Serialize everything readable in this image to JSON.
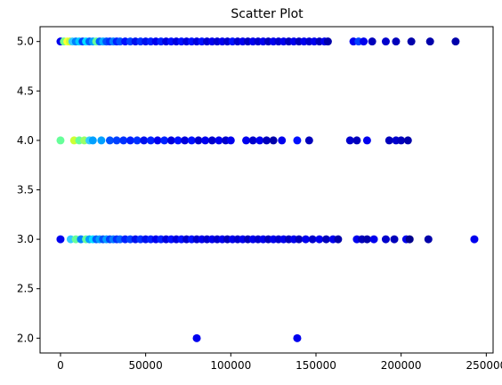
{
  "chart_data": {
    "type": "scatter",
    "title": "Scatter Plot",
    "xlabel": "",
    "ylabel": "",
    "xlim": [
      -12000,
      254000
    ],
    "ylim": [
      1.85,
      5.15
    ],
    "xticks": [
      0,
      50000,
      100000,
      150000,
      200000,
      250000
    ],
    "xtick_labels": [
      "0",
      "50000",
      "100000",
      "150000",
      "200000",
      "250000"
    ],
    "yticks": [
      2.0,
      2.5,
      3.0,
      3.5,
      4.0,
      4.5,
      5.0
    ],
    "ytick_labels": [
      "2.0",
      "2.5",
      "3.0",
      "3.5",
      "4.0",
      "4.5",
      "5.0"
    ],
    "grid": false,
    "colormap": "jet",
    "series": [
      {
        "points": [
          {
            "x": 0,
            "y": 5,
            "color": "#0000ee"
          },
          {
            "x": 2000,
            "y": 5,
            "color": "#6dff8a"
          },
          {
            "x": 4000,
            "y": 5,
            "color": "#ffff33"
          },
          {
            "x": 5500,
            "y": 5,
            "color": "#ccff33"
          },
          {
            "x": 7000,
            "y": 5,
            "color": "#33ccff"
          },
          {
            "x": 9000,
            "y": 5,
            "color": "#0080ff"
          },
          {
            "x": 11000,
            "y": 5,
            "color": "#00ccff"
          },
          {
            "x": 13000,
            "y": 5,
            "color": "#0040ff"
          },
          {
            "x": 15000,
            "y": 5,
            "color": "#00e0ff"
          },
          {
            "x": 17000,
            "y": 5,
            "color": "#0060ff"
          },
          {
            "x": 19000,
            "y": 5,
            "color": "#00a0ff"
          },
          {
            "x": 21000,
            "y": 5,
            "color": "#66ff99"
          },
          {
            "x": 23000,
            "y": 5,
            "color": "#0060ff"
          },
          {
            "x": 25000,
            "y": 5,
            "color": "#00b0ff"
          },
          {
            "x": 27000,
            "y": 5,
            "color": "#0050ff"
          },
          {
            "x": 29000,
            "y": 5,
            "color": "#0030ff"
          },
          {
            "x": 31000,
            "y": 5,
            "color": "#0080ff"
          },
          {
            "x": 33000,
            "y": 5,
            "color": "#0020ff"
          },
          {
            "x": 35000,
            "y": 5,
            "color": "#0050ff"
          },
          {
            "x": 38000,
            "y": 5,
            "color": "#0010ff"
          },
          {
            "x": 41000,
            "y": 5,
            "color": "#0040ff"
          },
          {
            "x": 44000,
            "y": 5,
            "color": "#0010ee"
          },
          {
            "x": 47000,
            "y": 5,
            "color": "#0030ff"
          },
          {
            "x": 50000,
            "y": 5,
            "color": "#0010ee"
          },
          {
            "x": 53000,
            "y": 5,
            "color": "#0020ff"
          },
          {
            "x": 56000,
            "y": 5,
            "color": "#0000ee"
          },
          {
            "x": 59000,
            "y": 5,
            "color": "#0020ff"
          },
          {
            "x": 62000,
            "y": 5,
            "color": "#0000e0"
          },
          {
            "x": 65000,
            "y": 5,
            "color": "#0010ff"
          },
          {
            "x": 68000,
            "y": 5,
            "color": "#0000e0"
          },
          {
            "x": 71000,
            "y": 5,
            "color": "#0010ff"
          },
          {
            "x": 74000,
            "y": 5,
            "color": "#0000dd"
          },
          {
            "x": 77000,
            "y": 5,
            "color": "#0010ff"
          },
          {
            "x": 80000,
            "y": 5,
            "color": "#0000dd"
          },
          {
            "x": 83000,
            "y": 5,
            "color": "#0010ff"
          },
          {
            "x": 86000,
            "y": 5,
            "color": "#0000d0"
          },
          {
            "x": 89000,
            "y": 5,
            "color": "#0000ee"
          },
          {
            "x": 92000,
            "y": 5,
            "color": "#0000d0"
          },
          {
            "x": 95000,
            "y": 5,
            "color": "#0000ee"
          },
          {
            "x": 98000,
            "y": 5,
            "color": "#0000cc"
          },
          {
            "x": 101000,
            "y": 5,
            "color": "#0010ff"
          },
          {
            "x": 104000,
            "y": 5,
            "color": "#0000cc"
          },
          {
            "x": 107000,
            "y": 5,
            "color": "#0000ee"
          },
          {
            "x": 110000,
            "y": 5,
            "color": "#0000c0"
          },
          {
            "x": 113000,
            "y": 5,
            "color": "#0000ee"
          },
          {
            "x": 116000,
            "y": 5,
            "color": "#0000cc"
          },
          {
            "x": 119000,
            "y": 5,
            "color": "#0000ee"
          },
          {
            "x": 122000,
            "y": 5,
            "color": "#0000bb"
          },
          {
            "x": 125000,
            "y": 5,
            "color": "#0000ee"
          },
          {
            "x": 128000,
            "y": 5,
            "color": "#0000cc"
          },
          {
            "x": 131000,
            "y": 5,
            "color": "#0000ee"
          },
          {
            "x": 134000,
            "y": 5,
            "color": "#0000bb"
          },
          {
            "x": 137000,
            "y": 5,
            "color": "#0000ee"
          },
          {
            "x": 140000,
            "y": 5,
            "color": "#0000bb"
          },
          {
            "x": 143000,
            "y": 5,
            "color": "#0000ee"
          },
          {
            "x": 146000,
            "y": 5,
            "color": "#0000cc"
          },
          {
            "x": 149000,
            "y": 5,
            "color": "#0000ee"
          },
          {
            "x": 152000,
            "y": 5,
            "color": "#0000bb"
          },
          {
            "x": 155000,
            "y": 5,
            "color": "#0000ee"
          },
          {
            "x": 157000,
            "y": 5,
            "color": "#0000aa"
          },
          {
            "x": 172000,
            "y": 5,
            "color": "#0000ee"
          },
          {
            "x": 175000,
            "y": 5,
            "color": "#0040ff"
          },
          {
            "x": 178000,
            "y": 5,
            "color": "#0000ee"
          },
          {
            "x": 183000,
            "y": 5,
            "color": "#0000bb"
          },
          {
            "x": 191000,
            "y": 5,
            "color": "#0000cc"
          },
          {
            "x": 197000,
            "y": 5,
            "color": "#0000bb"
          },
          {
            "x": 206000,
            "y": 5,
            "color": "#0000aa"
          },
          {
            "x": 217000,
            "y": 5,
            "color": "#0000aa"
          },
          {
            "x": 232000,
            "y": 5,
            "color": "#0000aa"
          },
          {
            "x": 0,
            "y": 4,
            "color": "#66ff99"
          },
          {
            "x": 8000,
            "y": 4,
            "color": "#ccff33"
          },
          {
            "x": 11000,
            "y": 4,
            "color": "#66ff99"
          },
          {
            "x": 14000,
            "y": 4,
            "color": "#99ff66"
          },
          {
            "x": 17000,
            "y": 4,
            "color": "#33ccff"
          },
          {
            "x": 19000,
            "y": 4,
            "color": "#00a0ff"
          },
          {
            "x": 24000,
            "y": 4,
            "color": "#00a0ff"
          },
          {
            "x": 29000,
            "y": 4,
            "color": "#0050ff"
          },
          {
            "x": 33000,
            "y": 4,
            "color": "#0040ff"
          },
          {
            "x": 37000,
            "y": 4,
            "color": "#0030ff"
          },
          {
            "x": 41000,
            "y": 4,
            "color": "#0020ff"
          },
          {
            "x": 45000,
            "y": 4,
            "color": "#0030ff"
          },
          {
            "x": 49000,
            "y": 4,
            "color": "#0010ee"
          },
          {
            "x": 53000,
            "y": 4,
            "color": "#0020ff"
          },
          {
            "x": 57000,
            "y": 4,
            "color": "#0000ee"
          },
          {
            "x": 61000,
            "y": 4,
            "color": "#0020ff"
          },
          {
            "x": 65000,
            "y": 4,
            "color": "#0000dd"
          },
          {
            "x": 69000,
            "y": 4,
            "color": "#0010ff"
          },
          {
            "x": 73000,
            "y": 4,
            "color": "#0000dd"
          },
          {
            "x": 77000,
            "y": 4,
            "color": "#0010ff"
          },
          {
            "x": 81000,
            "y": 4,
            "color": "#0000cc"
          },
          {
            "x": 85000,
            "y": 4,
            "color": "#0000ee"
          },
          {
            "x": 89000,
            "y": 4,
            "color": "#0000cc"
          },
          {
            "x": 93000,
            "y": 4,
            "color": "#0000ee"
          },
          {
            "x": 97000,
            "y": 4,
            "color": "#0000cc"
          },
          {
            "x": 100000,
            "y": 4,
            "color": "#0000ee"
          },
          {
            "x": 109000,
            "y": 4,
            "color": "#0000ee"
          },
          {
            "x": 113000,
            "y": 4,
            "color": "#0000cc"
          },
          {
            "x": 117000,
            "y": 4,
            "color": "#0000ee"
          },
          {
            "x": 121000,
            "y": 4,
            "color": "#0000bb"
          },
          {
            "x": 125000,
            "y": 4,
            "color": "#0000aa"
          },
          {
            "x": 130000,
            "y": 4,
            "color": "#0000ee"
          },
          {
            "x": 139000,
            "y": 4,
            "color": "#0010ff"
          },
          {
            "x": 146000,
            "y": 4,
            "color": "#0000bb"
          },
          {
            "x": 170000,
            "y": 4,
            "color": "#0000cc"
          },
          {
            "x": 174000,
            "y": 4,
            "color": "#0000bb"
          },
          {
            "x": 180000,
            "y": 4,
            "color": "#0000ee"
          },
          {
            "x": 193000,
            "y": 4,
            "color": "#0000bb"
          },
          {
            "x": 197000,
            "y": 4,
            "color": "#0000cc"
          },
          {
            "x": 200000,
            "y": 4,
            "color": "#0000bb"
          },
          {
            "x": 204000,
            "y": 4,
            "color": "#0000aa"
          },
          {
            "x": 0,
            "y": 3,
            "color": "#0000ee"
          },
          {
            "x": 6000,
            "y": 3,
            "color": "#33ccff"
          },
          {
            "x": 9000,
            "y": 3,
            "color": "#66ff99"
          },
          {
            "x": 12000,
            "y": 3,
            "color": "#0080ff"
          },
          {
            "x": 15000,
            "y": 3,
            "color": "#66ff99"
          },
          {
            "x": 17000,
            "y": 3,
            "color": "#00a0ff"
          },
          {
            "x": 19000,
            "y": 3,
            "color": "#00e0ff"
          },
          {
            "x": 21000,
            "y": 3,
            "color": "#0060ff"
          },
          {
            "x": 23000,
            "y": 3,
            "color": "#00a0ff"
          },
          {
            "x": 25000,
            "y": 3,
            "color": "#0050ff"
          },
          {
            "x": 27000,
            "y": 3,
            "color": "#00a0ff"
          },
          {
            "x": 29000,
            "y": 3,
            "color": "#0040ff"
          },
          {
            "x": 31000,
            "y": 3,
            "color": "#0080ff"
          },
          {
            "x": 33000,
            "y": 3,
            "color": "#0030ff"
          },
          {
            "x": 35000,
            "y": 3,
            "color": "#0060ff"
          },
          {
            "x": 38000,
            "y": 3,
            "color": "#0020ff"
          },
          {
            "x": 41000,
            "y": 3,
            "color": "#0040ff"
          },
          {
            "x": 44000,
            "y": 3,
            "color": "#0010ee"
          },
          {
            "x": 47000,
            "y": 3,
            "color": "#0030ff"
          },
          {
            "x": 50000,
            "y": 3,
            "color": "#0010ee"
          },
          {
            "x": 53000,
            "y": 3,
            "color": "#0020ff"
          },
          {
            "x": 56000,
            "y": 3,
            "color": "#0000ee"
          },
          {
            "x": 59000,
            "y": 3,
            "color": "#0020ff"
          },
          {
            "x": 62000,
            "y": 3,
            "color": "#0000dd"
          },
          {
            "x": 65000,
            "y": 3,
            "color": "#0010ff"
          },
          {
            "x": 68000,
            "y": 3,
            "color": "#0000dd"
          },
          {
            "x": 71000,
            "y": 3,
            "color": "#0010ff"
          },
          {
            "x": 74000,
            "y": 3,
            "color": "#0000cc"
          },
          {
            "x": 77000,
            "y": 3,
            "color": "#0010ff"
          },
          {
            "x": 80000,
            "y": 3,
            "color": "#0000cc"
          },
          {
            "x": 83000,
            "y": 3,
            "color": "#0000ee"
          },
          {
            "x": 86000,
            "y": 3,
            "color": "#0000cc"
          },
          {
            "x": 89000,
            "y": 3,
            "color": "#0000ee"
          },
          {
            "x": 92000,
            "y": 3,
            "color": "#0000cc"
          },
          {
            "x": 95000,
            "y": 3,
            "color": "#0000ee"
          },
          {
            "x": 98000,
            "y": 3,
            "color": "#0000bb"
          },
          {
            "x": 101000,
            "y": 3,
            "color": "#0000ee"
          },
          {
            "x": 104000,
            "y": 3,
            "color": "#0000cc"
          },
          {
            "x": 107000,
            "y": 3,
            "color": "#0000ee"
          },
          {
            "x": 110000,
            "y": 3,
            "color": "#0000bb"
          },
          {
            "x": 113000,
            "y": 3,
            "color": "#0000ee"
          },
          {
            "x": 116000,
            "y": 3,
            "color": "#0000cc"
          },
          {
            "x": 119000,
            "y": 3,
            "color": "#0000ee"
          },
          {
            "x": 122000,
            "y": 3,
            "color": "#0000bb"
          },
          {
            "x": 125000,
            "y": 3,
            "color": "#0000ee"
          },
          {
            "x": 128000,
            "y": 3,
            "color": "#0000cc"
          },
          {
            "x": 131000,
            "y": 3,
            "color": "#0000ee"
          },
          {
            "x": 134000,
            "y": 3,
            "color": "#0000bb"
          },
          {
            "x": 137000,
            "y": 3,
            "color": "#0000ee"
          },
          {
            "x": 140000,
            "y": 3,
            "color": "#0000bb"
          },
          {
            "x": 144000,
            "y": 3,
            "color": "#0000ee"
          },
          {
            "x": 148000,
            "y": 3,
            "color": "#0000cc"
          },
          {
            "x": 152000,
            "y": 3,
            "color": "#0000ee"
          },
          {
            "x": 156000,
            "y": 3,
            "color": "#0000bb"
          },
          {
            "x": 160000,
            "y": 3,
            "color": "#0000ee"
          },
          {
            "x": 163000,
            "y": 3,
            "color": "#0000aa"
          },
          {
            "x": 174000,
            "y": 3,
            "color": "#0000ee"
          },
          {
            "x": 177000,
            "y": 3,
            "color": "#0000bb"
          },
          {
            "x": 180000,
            "y": 3,
            "color": "#0000aa"
          },
          {
            "x": 184000,
            "y": 3,
            "color": "#0000ee"
          },
          {
            "x": 191000,
            "y": 3,
            "color": "#0000cc"
          },
          {
            "x": 196000,
            "y": 3,
            "color": "#0000bb"
          },
          {
            "x": 203000,
            "y": 3,
            "color": "#0000ee"
          },
          {
            "x": 205000,
            "y": 3,
            "color": "#00008b"
          },
          {
            "x": 216000,
            "y": 3,
            "color": "#0000aa"
          },
          {
            "x": 243000,
            "y": 3,
            "color": "#0000ee"
          },
          {
            "x": 80000,
            "y": 2,
            "color": "#0000ee"
          },
          {
            "x": 139000,
            "y": 2,
            "color": "#0000ee"
          }
        ]
      }
    ]
  }
}
